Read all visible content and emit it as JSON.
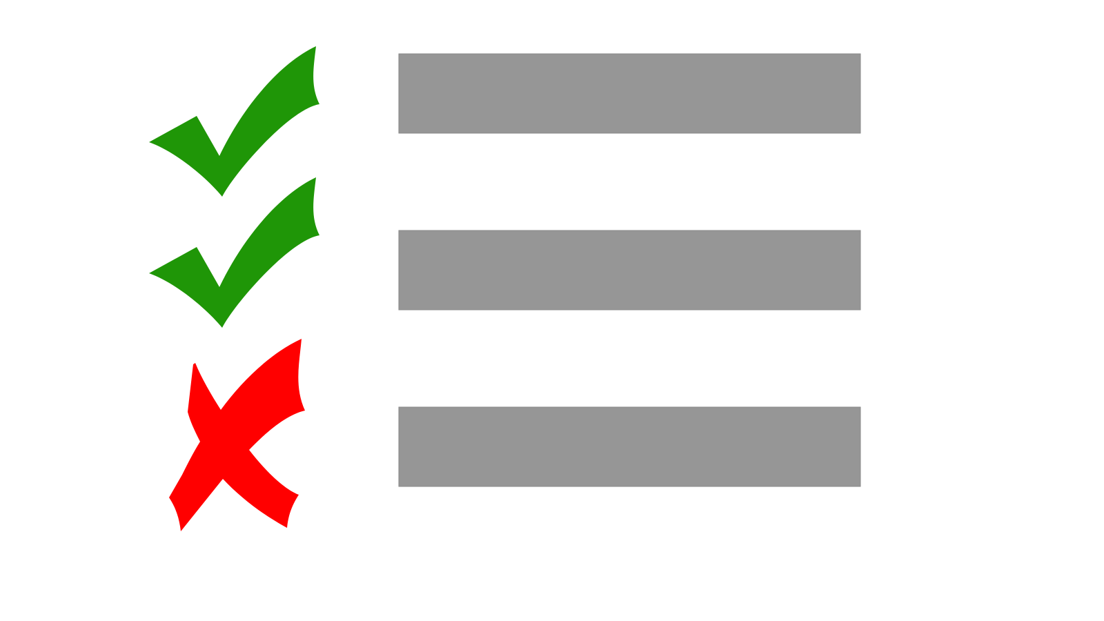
{
  "colors": {
    "background": "#ffffff",
    "check": "#1f9607",
    "cross": "#ff0000",
    "bar": "#969696",
    "bar_edge": "#8a8a8a"
  },
  "items": [
    {
      "status": "check",
      "icon": "checkmark-icon"
    },
    {
      "status": "check",
      "icon": "checkmark-icon"
    },
    {
      "status": "cross",
      "icon": "cross-icon"
    }
  ]
}
